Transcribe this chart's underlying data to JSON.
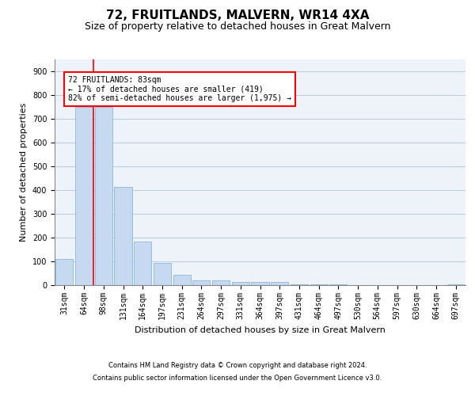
{
  "title": "72, FRUITLANDS, MALVERN, WR14 4XA",
  "subtitle": "Size of property relative to detached houses in Great Malvern",
  "xlabel": "Distribution of detached houses by size in Great Malvern",
  "ylabel": "Number of detached properties",
  "footer_line1": "Contains HM Land Registry data © Crown copyright and database right 2024.",
  "footer_line2": "Contains public sector information licensed under the Open Government Licence v3.0.",
  "bar_labels": [
    "31sqm",
    "64sqm",
    "98sqm",
    "131sqm",
    "164sqm",
    "197sqm",
    "231sqm",
    "264sqm",
    "297sqm",
    "331sqm",
    "364sqm",
    "397sqm",
    "431sqm",
    "464sqm",
    "497sqm",
    "530sqm",
    "564sqm",
    "597sqm",
    "630sqm",
    "664sqm",
    "697sqm"
  ],
  "bar_values": [
    110,
    750,
    750,
    415,
    185,
    95,
    45,
    20,
    20,
    15,
    15,
    15,
    5,
    2,
    2,
    1,
    1,
    1,
    1,
    1,
    3
  ],
  "bar_color": "#c6d9f1",
  "bar_edge_color": "#7bafd4",
  "vline_x": 1.5,
  "vline_color": "red",
  "annotation_text": "72 FRUITLANDS: 83sqm\n← 17% of detached houses are smaller (419)\n82% of semi-detached houses are larger (1,975) →",
  "annotation_box_color": "white",
  "annotation_box_edge": "red",
  "ylim": [
    0,
    950
  ],
  "yticks": [
    0,
    100,
    200,
    300,
    400,
    500,
    600,
    700,
    800,
    900
  ],
  "grid_color": "#b0c4de",
  "background_color": "#eef3fa",
  "title_fontsize": 11,
  "subtitle_fontsize": 9,
  "ylabel_fontsize": 8,
  "xlabel_fontsize": 8,
  "tick_fontsize": 7,
  "annot_fontsize": 7
}
